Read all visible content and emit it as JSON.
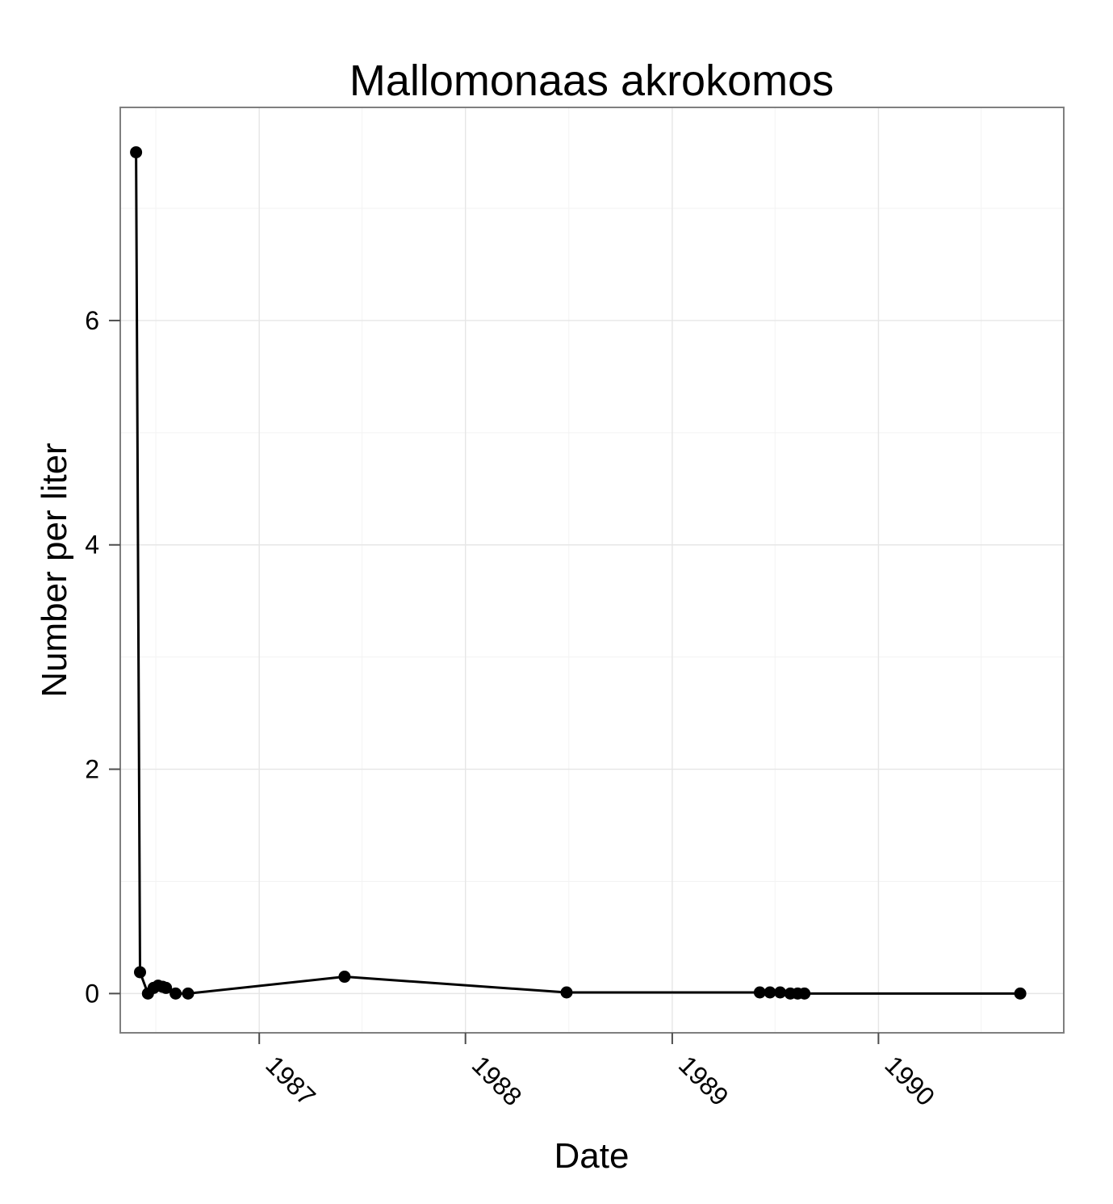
{
  "chart_data": {
    "type": "line",
    "title": "Mallomonaas akrokomos",
    "xlabel": "Date",
    "ylabel": "Number per liter",
    "x_ticks": [
      "1987",
      "1988",
      "1989",
      "1990"
    ],
    "y_ticks": [
      "0",
      "2",
      "4",
      "6"
    ],
    "xlim": [
      "1986-04-30",
      "1990-11-25"
    ],
    "ylim": [
      -0.35,
      7.9
    ],
    "grid": true,
    "series": [
      {
        "points": [
          {
            "x": "1986-05-28",
            "y": 7.5
          },
          {
            "x": "1986-06-04",
            "y": 0.19
          },
          {
            "x": "1986-06-18",
            "y": 0.0
          },
          {
            "x": "1986-06-28",
            "y": 0.05
          },
          {
            "x": "1986-07-06",
            "y": 0.07
          },
          {
            "x": "1986-07-14",
            "y": 0.06
          },
          {
            "x": "1986-07-20",
            "y": 0.05
          },
          {
            "x": "1986-08-06",
            "y": 0.0
          },
          {
            "x": "1986-08-28",
            "y": 0.0
          },
          {
            "x": "1987-06-01",
            "y": 0.15
          },
          {
            "x": "1988-06-28",
            "y": 0.01
          },
          {
            "x": "1989-06-05",
            "y": 0.01
          },
          {
            "x": "1989-06-23",
            "y": 0.01
          },
          {
            "x": "1989-07-11",
            "y": 0.01
          },
          {
            "x": "1989-07-29",
            "y": 0.0
          },
          {
            "x": "1989-08-11",
            "y": 0.0
          },
          {
            "x": "1989-08-23",
            "y": 0.0
          },
          {
            "x": "1990-09-09",
            "y": 0.0
          }
        ]
      }
    ]
  }
}
